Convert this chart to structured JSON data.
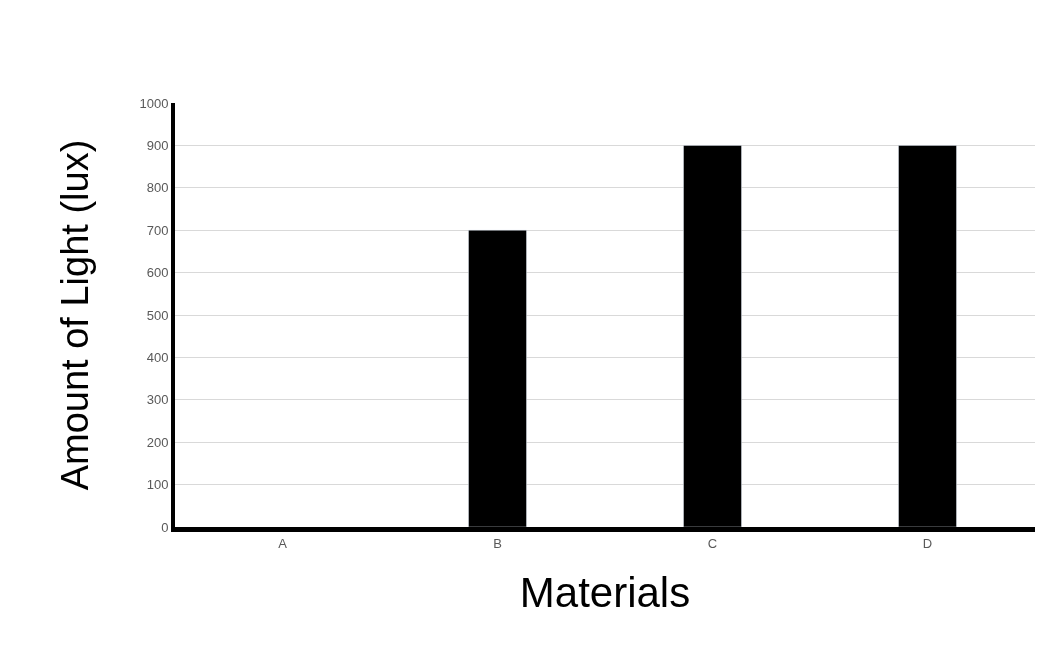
{
  "chart_data": {
    "type": "bar",
    "xlabel": "Materials",
    "ylabel": "Amount of Light (lux)",
    "categories": [
      "A",
      "B",
      "C",
      "D"
    ],
    "values": [
      null,
      700,
      900,
      900
    ],
    "color": "#000000",
    "ylim": [
      0,
      1000
    ],
    "yticks": [
      0,
      100,
      200,
      300,
      400,
      500,
      600,
      700,
      800,
      900,
      1000
    ],
    "grid": "y"
  }
}
